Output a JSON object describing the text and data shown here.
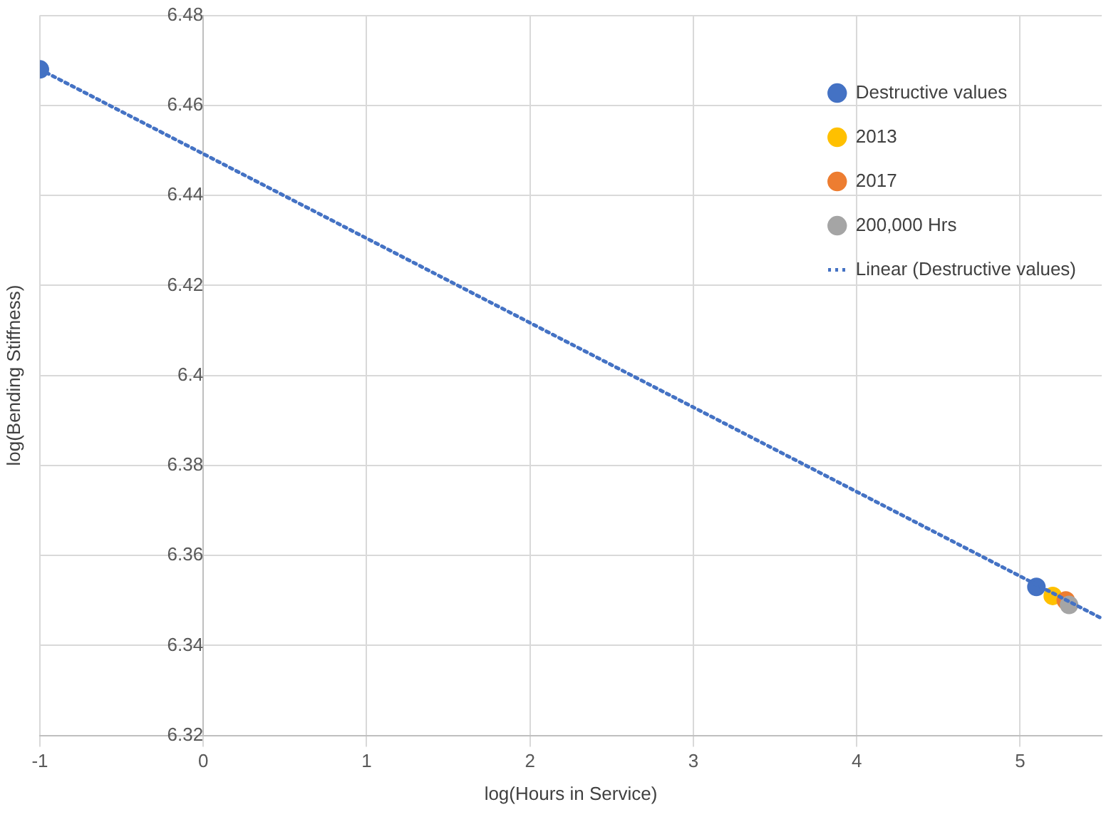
{
  "chart_data": {
    "type": "scatter",
    "xlabel": "log(Hours in Service)",
    "ylabel": "log(Bending Stiffness)",
    "xlim": [
      -1,
      5.5
    ],
    "xticks": [
      -1,
      0,
      1,
      2,
      3,
      4,
      5
    ],
    "ylim": [
      6.32,
      6.48
    ],
    "yticks": [
      6.32,
      6.34,
      6.36,
      6.38,
      6.4,
      6.42,
      6.44,
      6.46,
      6.48
    ],
    "grid": true,
    "legend": "top right",
    "marker": "circle",
    "series": [
      {
        "name": "Destructive values",
        "color": "#4472c4",
        "x": [
          -1,
          5.1
        ],
        "values": [
          6.468,
          6.353
        ]
      },
      {
        "name": "2013",
        "color": "#ffc000",
        "x": [
          5.2
        ],
        "values": [
          6.351
        ]
      },
      {
        "name": "2017",
        "color": "#ed7d31",
        "x": [
          5.28
        ],
        "values": [
          6.35
        ]
      },
      {
        "name": "200,000 Hrs",
        "color": "#a5a5a5",
        "x": [
          5.3
        ],
        "values": [
          6.349
        ]
      },
      {
        "name": "Linear (Destructive values)",
        "type": "line",
        "line_style": "dotted",
        "marker": "none",
        "color": "#4472c4",
        "x": [
          -1,
          5.5
        ],
        "values": [
          6.468,
          6.346
        ]
      }
    ]
  }
}
